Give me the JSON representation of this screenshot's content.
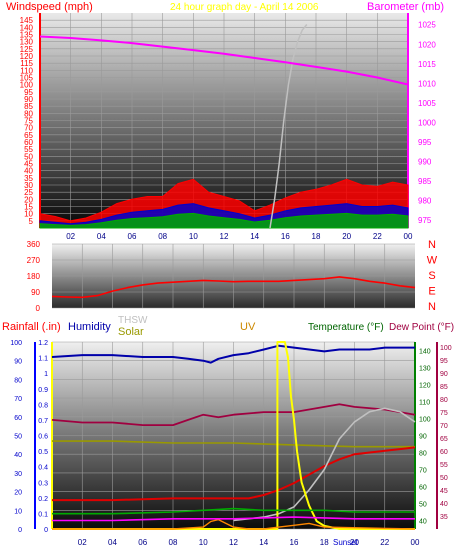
{
  "header": {
    "windspeed_label": "Windspeed (mph)",
    "title": "24 hour graph day - April 14 2006",
    "barometer_label": "Barometer (mb)"
  },
  "colors": {
    "windspeed": "#ff0000",
    "barometer": "#ff00ff",
    "title": "#ffff00",
    "direction": "#ff0000",
    "rain": "#0000ff",
    "humidity": "#0000aa",
    "thsw": "#c0c0c0",
    "solar": "#999900",
    "uv": "#ffff00",
    "temperature": "#008000",
    "dewpoint": "#a00040",
    "bg_top": "#ffffff",
    "bg_bottom": "#000000"
  },
  "direction_labels": [
    "N",
    "W",
    "S",
    "E",
    "N"
  ],
  "bottom_labels": {
    "rainfall": "Rainfall (.in)",
    "humidity": "Humidity",
    "thsw": "THSW",
    "solar": "Solar",
    "uv": "UV",
    "temperature": "Temperature (°F)",
    "dewpoint": "Dew Point (°F)",
    "sunset": "Sunset"
  },
  "chart_data": [
    {
      "type": "line",
      "name": "wind-barometer",
      "x_ticks": [
        "02",
        "04",
        "06",
        "08",
        "10",
        "12",
        "14",
        "16",
        "18",
        "20",
        "22",
        "00"
      ],
      "y_left_ticks": [
        "5",
        "10",
        "15",
        "20",
        "25",
        "30",
        "35",
        "40",
        "45",
        "50",
        "55",
        "60",
        "65",
        "70",
        "75",
        "80",
        "85",
        "90",
        "95",
        "100",
        "105",
        "110",
        "115",
        "120",
        "125",
        "130",
        "135",
        "140",
        "145"
      ],
      "y_right_ticks": [
        "975",
        "980",
        "985",
        "990",
        "995",
        "1000",
        "1005",
        "1010",
        "1015",
        "1020",
        "1025"
      ],
      "ylim_left": [
        0,
        150
      ],
      "ylim_right": [
        973,
        1028
      ],
      "xlim": [
        0,
        24
      ],
      "series": [
        {
          "key": "barometer",
          "x": [
            0,
            2,
            4,
            6,
            8,
            10,
            12,
            14,
            16,
            18,
            20,
            22,
            24
          ],
          "y": [
            1022,
            1021.6,
            1021,
            1020.3,
            1019.4,
            1018.5,
            1017.6,
            1016.5,
            1015.4,
            1014.2,
            1013,
            1011.5,
            1009.7
          ]
        },
        {
          "key": "gust",
          "x": [
            0,
            1,
            2,
            3,
            4,
            5,
            6,
            7,
            8,
            9,
            10,
            11,
            12,
            13,
            14,
            15,
            16,
            17,
            18,
            19,
            20,
            21,
            22,
            23,
            24
          ],
          "y": [
            10,
            8,
            5,
            7,
            11,
            17,
            20,
            22,
            22,
            31,
            34,
            25,
            22,
            19,
            12,
            16,
            21,
            25,
            27,
            30,
            34,
            30,
            29,
            32,
            30
          ]
        },
        {
          "key": "speed",
          "x": [
            0,
            1,
            2,
            3,
            4,
            5,
            6,
            7,
            8,
            9,
            10,
            11,
            12,
            13,
            14,
            15,
            16,
            17,
            18,
            19,
            20,
            21,
            22,
            23,
            24
          ],
          "y": [
            5,
            4,
            3,
            4,
            6,
            9,
            11,
            12,
            13,
            16,
            17,
            14,
            12,
            10,
            7,
            9,
            12,
            14,
            15,
            16,
            17,
            15,
            15,
            16,
            14
          ]
        },
        {
          "key": "thsw",
          "x": [
            15,
            15.3,
            15.6,
            15.9,
            16.2,
            16.5,
            16.8,
            17.1,
            17.4
          ],
          "y": [
            0,
            20,
            45,
            75,
            100,
            118,
            130,
            138,
            142
          ]
        }
      ]
    },
    {
      "type": "line",
      "name": "wind-direction",
      "y_ticks": [
        "360",
        "270",
        "180",
        "90",
        "0"
      ],
      "ylim": [
        0,
        360
      ],
      "xlim": [
        0,
        24
      ],
      "series": [
        {
          "key": "direction",
          "x": [
            0,
            1,
            2,
            3,
            4,
            5,
            6,
            7,
            8,
            9,
            10,
            11,
            12,
            13,
            14,
            15,
            16,
            17,
            18,
            19,
            20,
            21,
            22,
            23,
            24
          ],
          "y": [
            65,
            62,
            60,
            70,
            95,
            115,
            130,
            140,
            145,
            150,
            155,
            152,
            148,
            150,
            150,
            150,
            155,
            160,
            165,
            175,
            165,
            150,
            140,
            125,
            115
          ]
        }
      ]
    },
    {
      "type": "line",
      "name": "multi-parameter",
      "x_ticks": [
        "02",
        "04",
        "06",
        "08",
        "10",
        "12",
        "14",
        "16",
        "18",
        "20",
        "22",
        "00"
      ],
      "rain_ticks": [
        "0",
        "10",
        "20",
        "30",
        "40",
        "50",
        "60",
        "70",
        "80",
        "90",
        "100"
      ],
      "uv_ticks": [
        "0",
        "0.1",
        "0.2",
        "0.3",
        "0.4",
        "0.5",
        "0.6",
        "0.7",
        "0.8",
        "0.9",
        "1",
        "1.1",
        "1.2"
      ],
      "temp_ticks": [
        "40",
        "50",
        "60",
        "70",
        "80",
        "90",
        "100",
        "110",
        "120",
        "130",
        "140"
      ],
      "dew_ticks": [
        "35",
        "40",
        "45",
        "50",
        "55",
        "60",
        "65",
        "70",
        "75",
        "80",
        "85",
        "90",
        "95",
        "100"
      ],
      "xlim": [
        0,
        24
      ],
      "series": [
        {
          "key": "humidity",
          "axis": "rain",
          "x": [
            0,
            2,
            4,
            6,
            8,
            9,
            10,
            10.5,
            11,
            12,
            13,
            14,
            15,
            16,
            17,
            18,
            19,
            20,
            21,
            22,
            23,
            24
          ],
          "y": [
            92,
            93,
            93,
            92,
            92,
            91,
            90,
            89,
            91,
            93,
            94,
            96,
            98,
            97,
            96,
            95,
            96,
            96,
            96,
            97,
            97,
            97
          ]
        },
        {
          "key": "dewpoint",
          "axis": "dew",
          "x": [
            0,
            2,
            4,
            6,
            8,
            9,
            10,
            11,
            12,
            14,
            16,
            18,
            19,
            20,
            22,
            24
          ],
          "y": [
            72,
            71,
            71,
            70,
            70,
            72,
            74,
            73,
            74,
            75,
            75,
            77,
            78,
            77,
            76,
            74
          ]
        },
        {
          "key": "solar",
          "axis": "rain",
          "x": [
            0,
            4,
            8,
            12,
            16,
            20,
            24
          ],
          "y": [
            47,
            47,
            46,
            46,
            45,
            44,
            44
          ]
        },
        {
          "key": "temperature",
          "axis": "temp",
          "x": [
            0,
            4,
            8,
            12,
            13,
            14,
            15,
            16,
            17,
            18,
            19,
            20,
            21,
            22,
            23,
            24
          ],
          "y": [
            52,
            52,
            53,
            53,
            53,
            55,
            58,
            62,
            67,
            72,
            76,
            79,
            80,
            81,
            82,
            83
          ]
        },
        {
          "key": "thsw",
          "axis": "temp",
          "x": [
            12,
            14,
            15,
            16,
            17,
            18,
            19,
            20,
            21,
            22,
            23,
            24
          ],
          "y": [
            40,
            42,
            44,
            48,
            58,
            70,
            88,
            98,
            104,
            106,
            104,
            98
          ]
        },
        {
          "key": "uv",
          "axis": "uv",
          "x": [
            0,
            14.9,
            14.9,
            15.4,
            15.6,
            15.8,
            16,
            16.2,
            16.5,
            17,
            17.5,
            18,
            18.5,
            19,
            24
          ],
          "y": [
            0,
            0,
            1.2,
            1.2,
            1.1,
            0.85,
            0.7,
            0.5,
            0.3,
            0.15,
            0.05,
            0.02,
            0.01,
            0,
            0
          ]
        },
        {
          "key": "rain",
          "axis": "rain",
          "x": [
            0,
            8,
            10,
            10.5,
            11,
            11.5,
            12,
            13,
            14,
            15,
            16,
            17,
            18,
            24
          ],
          "y": [
            0,
            0,
            1,
            4,
            5,
            3,
            1,
            0,
            0,
            1,
            2,
            3,
            1,
            0
          ]
        }
      ]
    }
  ]
}
